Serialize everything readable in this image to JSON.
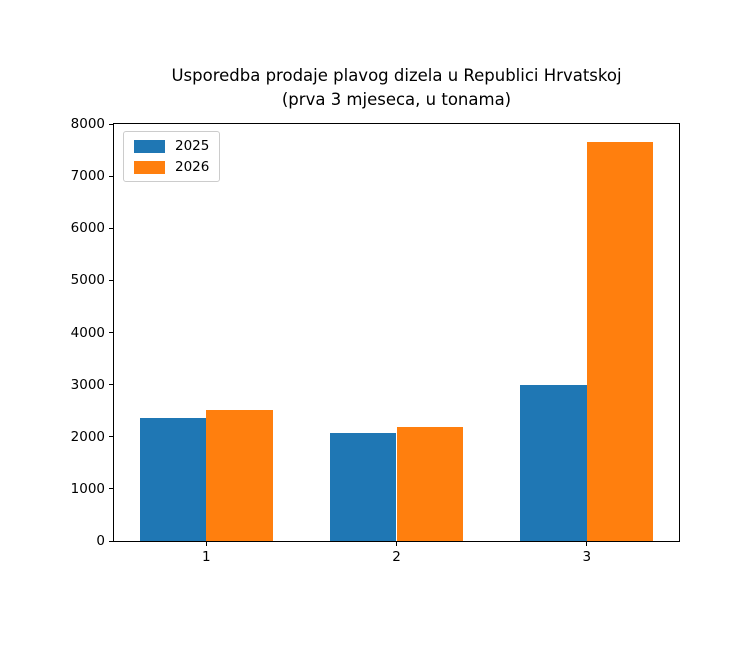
{
  "chart_data": {
    "type": "bar",
    "title": "Usporedba prodaje plavog dizela u Republici Hrvatskoj (prva 3 mjeseca, u tonama)",
    "title_line1": "Usporedba prodaje plavog dizela u Republici Hrvatskoj",
    "title_line2": "(prva 3 mjeseca, u tonama)",
    "xlabel": "",
    "ylabel": "",
    "categories": [
      "1",
      "2",
      "3"
    ],
    "series": [
      {
        "name": "2025",
        "color": "#1f77b4",
        "values": [
          2360,
          2080,
          3000
        ]
      },
      {
        "name": "2026",
        "color": "#ff7f0e",
        "values": [
          2510,
          2180,
          7650
        ]
      }
    ],
    "ylim": [
      0,
      8000
    ],
    "yticks": [
      0,
      1000,
      2000,
      3000,
      4000,
      5000,
      6000,
      7000,
      8000
    ],
    "xlim": [
      0.515,
      3.485
    ],
    "bar_width": 0.35,
    "grid": false,
    "legend_position": "upper left",
    "plot_background": "#ffffff",
    "spine_color": "#000000"
  }
}
